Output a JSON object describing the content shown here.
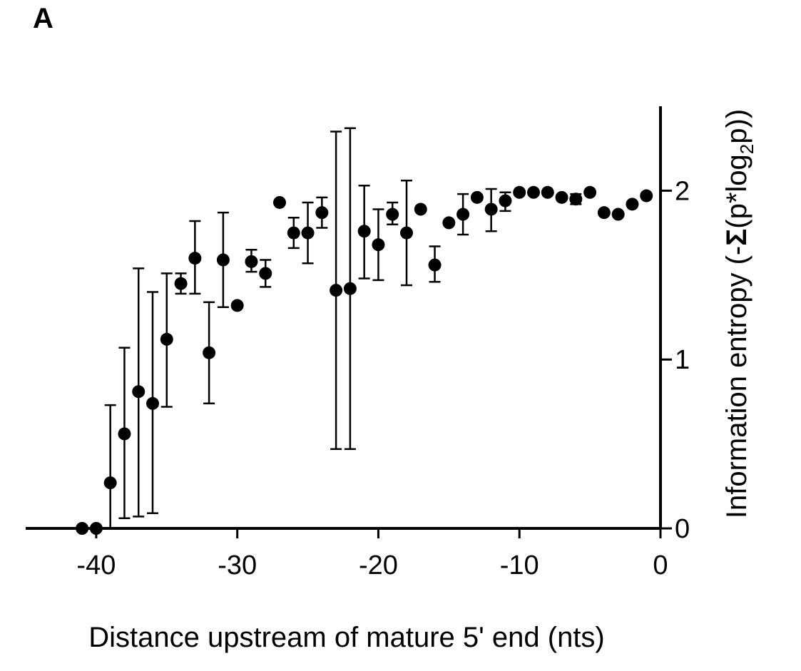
{
  "panel_label": "A",
  "chart_data": {
    "type": "scatter",
    "xlabel": "Distance upstream of mature 5' end (nts)",
    "ylabel_parts": {
      "prefix": "Information entropy (-",
      "sigma": "Σ",
      "mid": "(p*log",
      "sub": "2",
      "suffix": "p))"
    },
    "xlim": [
      -45,
      0
    ],
    "ylim": [
      0,
      2.5
    ],
    "xticks": [
      -40,
      -30,
      -20,
      -10,
      0
    ],
    "yticks": [
      0,
      1,
      2
    ],
    "xtick_labels": [
      "-40",
      "-30",
      "-20",
      "-10",
      "0"
    ],
    "ytick_labels": [
      "0",
      "1",
      "2"
    ],
    "y_axis_side": "right",
    "grid": false,
    "colors": {
      "marker": "#000000",
      "axis": "#000000"
    },
    "points": [
      {
        "x": -41,
        "y": 0.0
      },
      {
        "x": -40,
        "y": 0.0
      },
      {
        "x": -39,
        "y": 0.27,
        "lo": 0.0,
        "hi": 0.73
      },
      {
        "x": -38,
        "y": 0.56,
        "lo": 0.06,
        "hi": 1.07
      },
      {
        "x": -37,
        "y": 0.81,
        "lo": 0.07,
        "hi": 1.54
      },
      {
        "x": -36,
        "y": 0.74,
        "lo": 0.09,
        "hi": 1.4
      },
      {
        "x": -35,
        "y": 1.12,
        "lo": 0.72,
        "hi": 1.51
      },
      {
        "x": -34,
        "y": 1.45,
        "lo": 1.39,
        "hi": 1.51
      },
      {
        "x": -33,
        "y": 1.6,
        "lo": 1.39,
        "hi": 1.82
      },
      {
        "x": -32,
        "y": 1.04,
        "lo": 0.74,
        "hi": 1.34
      },
      {
        "x": -31,
        "y": 1.59,
        "lo": 1.31,
        "hi": 1.87
      },
      {
        "x": -30,
        "y": 1.32
      },
      {
        "x": -29,
        "y": 1.58,
        "lo": 1.52,
        "hi": 1.65
      },
      {
        "x": -28,
        "y": 1.51,
        "lo": 1.43,
        "hi": 1.59
      },
      {
        "x": -27,
        "y": 1.93
      },
      {
        "x": -26,
        "y": 1.75,
        "lo": 1.66,
        "hi": 1.84
      },
      {
        "x": -25,
        "y": 1.75,
        "lo": 1.57,
        "hi": 1.93
      },
      {
        "x": -24,
        "y": 1.87,
        "lo": 1.78,
        "hi": 1.96
      },
      {
        "x": -23,
        "y": 1.41,
        "lo": 0.47,
        "hi": 2.35
      },
      {
        "x": -22,
        "y": 1.42,
        "lo": 0.47,
        "hi": 2.37
      },
      {
        "x": -21,
        "y": 1.76,
        "lo": 1.48,
        "hi": 2.03
      },
      {
        "x": -20,
        "y": 1.68,
        "lo": 1.47,
        "hi": 1.89
      },
      {
        "x": -19,
        "y": 1.86,
        "lo": 1.8,
        "hi": 1.93
      },
      {
        "x": -18,
        "y": 1.75,
        "lo": 1.44,
        "hi": 2.06
      },
      {
        "x": -17,
        "y": 1.89
      },
      {
        "x": -16,
        "y": 1.56,
        "lo": 1.46,
        "hi": 1.67
      },
      {
        "x": -15,
        "y": 1.81
      },
      {
        "x": -14,
        "y": 1.86,
        "lo": 1.74,
        "hi": 1.98
      },
      {
        "x": -13,
        "y": 1.96
      },
      {
        "x": -12,
        "y": 1.89,
        "lo": 1.76,
        "hi": 2.01
      },
      {
        "x": -11,
        "y": 1.94,
        "lo": 1.88,
        "hi": 1.99
      },
      {
        "x": -10,
        "y": 1.99
      },
      {
        "x": -9,
        "y": 1.99
      },
      {
        "x": -8,
        "y": 1.99
      },
      {
        "x": -7,
        "y": 1.96
      },
      {
        "x": -6,
        "y": 1.95,
        "lo": 1.92,
        "hi": 1.98
      },
      {
        "x": -5,
        "y": 1.99
      },
      {
        "x": -4,
        "y": 1.87
      },
      {
        "x": -3,
        "y": 1.86
      },
      {
        "x": -2,
        "y": 1.92
      },
      {
        "x": -1,
        "y": 1.97
      }
    ]
  }
}
